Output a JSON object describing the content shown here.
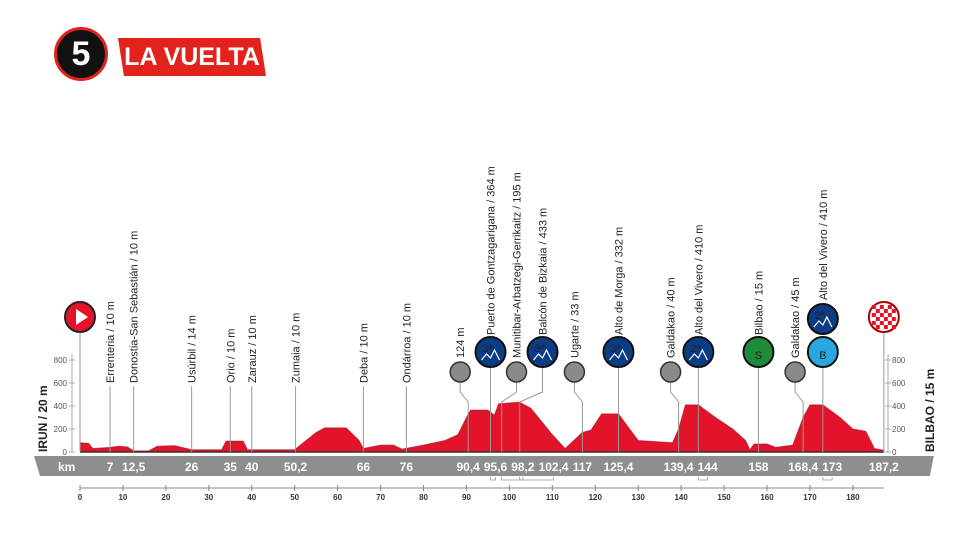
{
  "header": {
    "stage_number": "5",
    "brand": "LA VUELTA"
  },
  "chart_data": {
    "type": "area",
    "title": "",
    "xlabel": "km",
    "ylabel": "",
    "xlim": [
      0,
      187.2
    ],
    "ylim": [
      0,
      800
    ],
    "x_ticks": [
      0,
      10,
      20,
      30,
      40,
      50,
      60,
      70,
      80,
      90,
      100,
      110,
      120,
      130,
      140,
      150,
      160,
      170,
      180
    ],
    "y_ticks": [
      0,
      200,
      400,
      600,
      800
    ],
    "start_label": "IRUN / 20 m",
    "finish_label": "BILBAO / 15 m",
    "colors": {
      "profile": "#e3132a",
      "profile_dark": "#a0101c",
      "band": "#8d8e90",
      "cat3": "#0c3c84",
      "sprint": "#1e8a3a",
      "bonus": "#29a8e0",
      "uncat": "#8a8a8a"
    },
    "profile": [
      [
        0,
        80
      ],
      [
        2,
        75
      ],
      [
        3,
        30
      ],
      [
        7,
        40
      ],
      [
        9,
        50
      ],
      [
        11,
        45
      ],
      [
        12.5,
        10
      ],
      [
        16,
        10
      ],
      [
        18,
        50
      ],
      [
        22,
        55
      ],
      [
        26,
        20
      ],
      [
        33,
        20
      ],
      [
        34,
        95
      ],
      [
        38,
        95
      ],
      [
        39,
        20
      ],
      [
        50,
        20
      ],
      [
        52,
        80
      ],
      [
        55,
        170
      ],
      [
        57,
        210
      ],
      [
        62,
        210
      ],
      [
        65,
        100
      ],
      [
        66,
        30
      ],
      [
        70,
        60
      ],
      [
        73,
        60
      ],
      [
        75,
        25
      ],
      [
        80,
        60
      ],
      [
        85,
        100
      ],
      [
        88,
        150
      ],
      [
        90.4,
        330
      ],
      [
        91,
        364
      ],
      [
        95,
        364
      ],
      [
        96.5,
        320
      ],
      [
        97.5,
        420
      ],
      [
        102.4,
        433
      ],
      [
        105,
        380
      ],
      [
        110,
        150
      ],
      [
        113,
        30
      ],
      [
        117,
        170
      ],
      [
        119,
        190
      ],
      [
        121.5,
        332
      ],
      [
        125.4,
        332
      ],
      [
        128,
        200
      ],
      [
        130,
        100
      ],
      [
        138,
        80
      ],
      [
        139.4,
        200
      ],
      [
        141,
        410
      ],
      [
        144,
        410
      ],
      [
        148,
        300
      ],
      [
        152,
        200
      ],
      [
        155,
        100
      ],
      [
        156,
        20
      ],
      [
        157,
        70
      ],
      [
        160,
        70
      ],
      [
        162,
        40
      ],
      [
        166,
        60
      ],
      [
        168.4,
        300
      ],
      [
        170,
        410
      ],
      [
        173,
        410
      ],
      [
        177,
        300
      ],
      [
        180,
        200
      ],
      [
        183,
        180
      ],
      [
        185,
        30
      ],
      [
        187.2,
        15
      ]
    ],
    "km_points": [
      "7",
      "12,5",
      "26",
      "35",
      "40",
      "50,2",
      "66",
      "76",
      "90,4",
      "95,6",
      "98,2",
      "102,4",
      "117",
      "125,4",
      "139,4",
      "144",
      "158",
      "168,4",
      "173",
      "187,2"
    ],
    "markers": [
      {
        "km": 7,
        "label": "Errenteria / 10 m",
        "icon": "none"
      },
      {
        "km": 12.5,
        "label": "Donostia-San Sebastián / 10 m",
        "icon": "none"
      },
      {
        "km": 26,
        "label": "Usúrbil / 14 m",
        "icon": "none"
      },
      {
        "km": 35,
        "label": "Orio / 10 m",
        "icon": "none"
      },
      {
        "km": 40,
        "label": "Zarauz / 10 m",
        "icon": "none"
      },
      {
        "km": 50.2,
        "label": "Zumaia / 10 m",
        "icon": "none"
      },
      {
        "km": 66,
        "label": "Deba / 10 m",
        "icon": "none"
      },
      {
        "km": 76,
        "label": "Ondárroa / 10 m",
        "icon": "none"
      },
      {
        "km": 90.4,
        "label": "124 m",
        "icon": "uncat"
      },
      {
        "km": 95.6,
        "label": "Puerto de Gontzagarigana / 364 m",
        "icon": "cat",
        "cat": "3ª"
      },
      {
        "km": 98.2,
        "label": "Munitibar-Arbatzegi-Gerrikaitz / 195 m",
        "icon": "uncat"
      },
      {
        "km": 102.4,
        "label": "Balcón de Bizkaia / 433 m",
        "icon": "cat",
        "cat": "3ª"
      },
      {
        "km": 117,
        "label": "Ugarte / 33 m",
        "icon": "uncat"
      },
      {
        "km": 125.4,
        "label": "Alto de Morga / 332 m",
        "icon": "cat",
        "cat": "3ª"
      },
      {
        "km": 139.4,
        "label": "Galdakao / 40 m",
        "icon": "uncat"
      },
      {
        "km": 144,
        "label": "Alto del Vivero / 410 m",
        "icon": "cat",
        "cat": "2ª"
      },
      {
        "km": 158,
        "label": "Bilbao / 15 m",
        "icon": "sprint",
        "cat": "S"
      },
      {
        "km": 168.4,
        "label": "Galdakao / 45 m",
        "icon": "uncat"
      },
      {
        "km": 173,
        "label": "Alto del Vivero / 410 m",
        "icon": "cat-bonus",
        "cat": "2ª",
        "bonus": "B"
      }
    ]
  }
}
